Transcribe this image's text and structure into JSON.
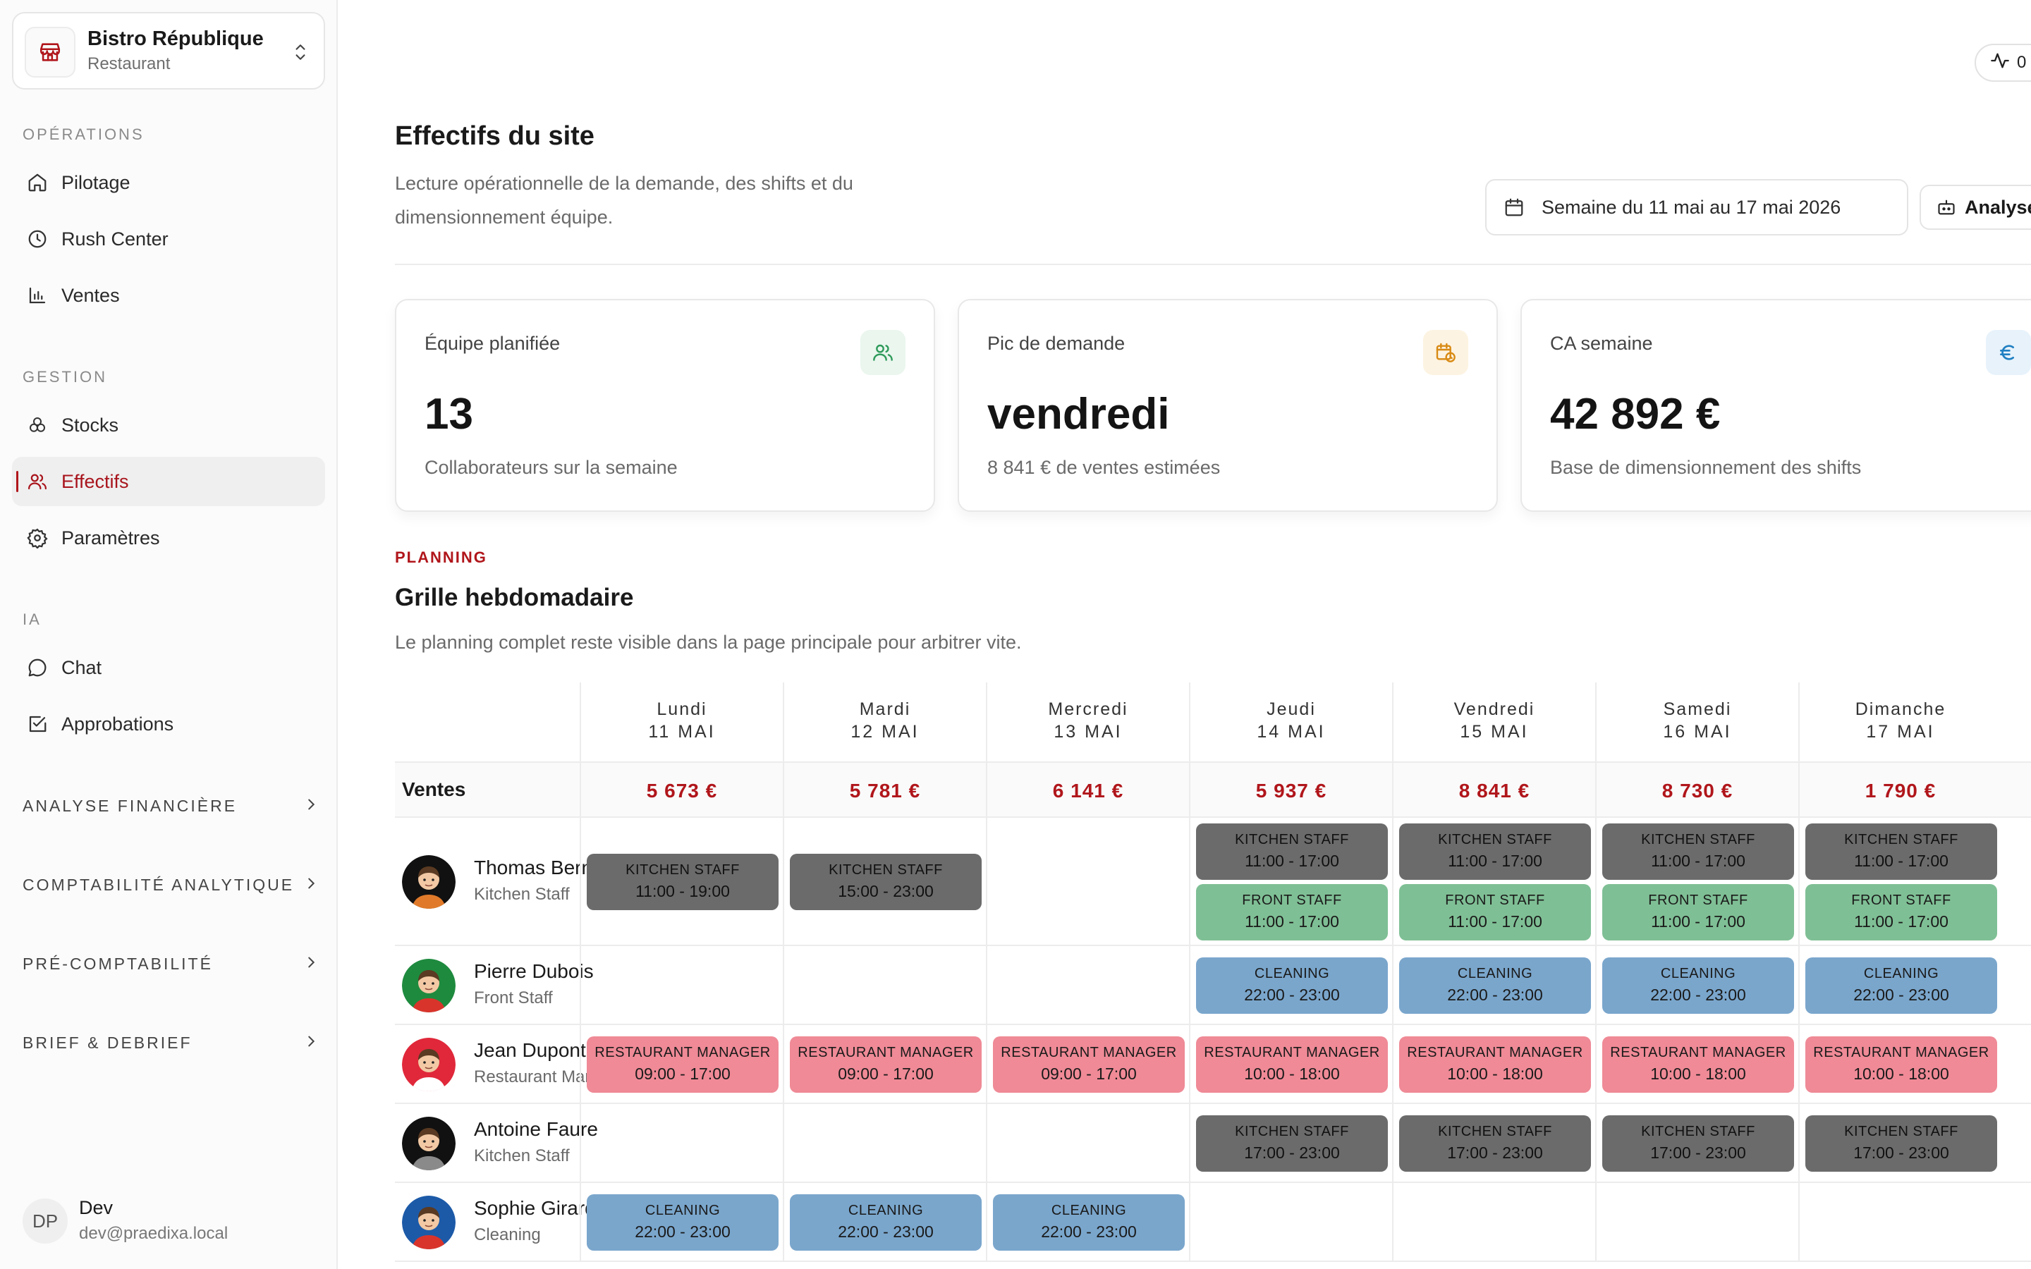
{
  "org": {
    "name": "Bistro République",
    "type": "Restaurant"
  },
  "sidebar": {
    "sections": [
      {
        "label": "OPÉRATIONS",
        "items": [
          {
            "label": "Pilotage",
            "icon": "home-icon"
          },
          {
            "label": "Rush Center",
            "icon": "clock-icon"
          },
          {
            "label": "Ventes",
            "icon": "bar-chart-icon"
          }
        ]
      },
      {
        "label": "GESTION",
        "items": [
          {
            "label": "Stocks",
            "icon": "boxes-icon"
          },
          {
            "label": "Effectifs",
            "icon": "users-icon",
            "active": true
          },
          {
            "label": "Paramètres",
            "icon": "gear-icon"
          }
        ]
      },
      {
        "label": "IA",
        "items": [
          {
            "label": "Chat",
            "icon": "chat-icon"
          },
          {
            "label": "Approbations",
            "icon": "check-square-icon"
          }
        ]
      }
    ],
    "groups": [
      "ANALYSE FINANCIÈRE",
      "COMPTABILITÉ ANALYTIQUE",
      "PRÉ-COMPTABILITÉ",
      "BRIEF & DEBRIEF"
    ],
    "user": {
      "initials": "DP",
      "name": "Dev",
      "email": "dev@praedixa.local"
    }
  },
  "header": {
    "pulse_label": "0",
    "title": "Effectifs du site",
    "subtitle": "Lecture opérationnelle de la demande, des shifts et du dimensionnement équipe.",
    "week_label": "Semaine du 11 mai au 17 mai 2026",
    "analyse_label": "Analyse"
  },
  "cards": [
    {
      "title": "Équipe planifiée",
      "value": "13",
      "desc": "Collaborateurs sur la semaine",
      "icon": "users-icon",
      "accent": "#2e9a5a",
      "bg": "#eaf6ee"
    },
    {
      "title": "Pic de demande",
      "value": "vendredi",
      "desc": "8 841 € de ventes estimées",
      "icon": "calendar-clock-icon",
      "accent": "#d88a14",
      "bg": "#fdf3e2"
    },
    {
      "title": "CA semaine",
      "value": "42 892 €",
      "desc": "Base de dimensionnement des shifts",
      "icon": "euro-icon",
      "accent": "#1f7fc2",
      "bg": "#e7f2fb"
    }
  ],
  "planning": {
    "kicker": "PLANNING",
    "title": "Grille hebdomadaire",
    "subtitle": "Le planning complet reste visible dans la page principale pour arbitrer vite.",
    "days": [
      {
        "name": "Lundi",
        "date": "11 MAI"
      },
      {
        "name": "Mardi",
        "date": "12 MAI"
      },
      {
        "name": "Mercredi",
        "date": "13 MAI"
      },
      {
        "name": "Jeudi",
        "date": "14 MAI"
      },
      {
        "name": "Vendredi",
        "date": "15 MAI"
      },
      {
        "name": "Samedi",
        "date": "16 MAI"
      },
      {
        "name": "Dimanche",
        "date": "17 MAI"
      }
    ],
    "sales_label": "Ventes",
    "sales": [
      "5 673 €",
      "5 781 €",
      "6 141 €",
      "5 937 €",
      "8 841 €",
      "8 730 €",
      "1 790 €"
    ],
    "employees": [
      {
        "name": "Thomas Bernard",
        "role": "Kitchen Staff",
        "avatar_bg": "#111111",
        "shirt": "#e07a2a",
        "shifts": [
          [
            {
              "role": "KITCHEN STAFF",
              "time": "11:00 - 19:00",
              "type": "kitchen"
            }
          ],
          [
            {
              "role": "KITCHEN STAFF",
              "time": "15:00 - 23:00",
              "type": "kitchen"
            }
          ],
          [],
          [
            {
              "role": "KITCHEN STAFF",
              "time": "11:00 - 17:00",
              "type": "kitchen"
            },
            {
              "role": "FRONT STAFF",
              "time": "11:00 - 17:00",
              "type": "front"
            }
          ],
          [
            {
              "role": "KITCHEN STAFF",
              "time": "11:00 - 17:00",
              "type": "kitchen"
            },
            {
              "role": "FRONT STAFF",
              "time": "11:00 - 17:00",
              "type": "front"
            }
          ],
          [
            {
              "role": "KITCHEN STAFF",
              "time": "11:00 - 17:00",
              "type": "kitchen"
            },
            {
              "role": "FRONT STAFF",
              "time": "11:00 - 17:00",
              "type": "front"
            }
          ],
          [
            {
              "role": "KITCHEN STAFF",
              "time": "11:00 - 17:00",
              "type": "kitchen"
            },
            {
              "role": "FRONT STAFF",
              "time": "11:00 - 17:00",
              "type": "front"
            }
          ]
        ]
      },
      {
        "name": "Pierre Dubois",
        "role": "Front Staff",
        "avatar_bg": "#1e8a3e",
        "shirt": "#d9342b",
        "shifts": [
          [],
          [],
          [],
          [
            {
              "role": "CLEANING",
              "time": "22:00 - 23:00",
              "type": "clean"
            }
          ],
          [
            {
              "role": "CLEANING",
              "time": "22:00 - 23:00",
              "type": "clean"
            }
          ],
          [
            {
              "role": "CLEANING",
              "time": "22:00 - 23:00",
              "type": "clean"
            }
          ],
          [
            {
              "role": "CLEANING",
              "time": "22:00 - 23:00",
              "type": "clean"
            }
          ]
        ]
      },
      {
        "name": "Jean Dupont",
        "role": "Restaurant Manager",
        "avatar_bg": "#e0283a",
        "shirt": "#ffffff",
        "shifts": [
          [
            {
              "role": "RESTAURANT MANAGER",
              "time": "09:00 - 17:00",
              "type": "mgr"
            }
          ],
          [
            {
              "role": "RESTAURANT MANAGER",
              "time": "09:00 - 17:00",
              "type": "mgr"
            }
          ],
          [
            {
              "role": "RESTAURANT MANAGER",
              "time": "09:00 - 17:00",
              "type": "mgr"
            }
          ],
          [
            {
              "role": "RESTAURANT MANAGER",
              "time": "10:00 - 18:00",
              "type": "mgr"
            }
          ],
          [
            {
              "role": "RESTAURANT MANAGER",
              "time": "10:00 - 18:00",
              "type": "mgr"
            }
          ],
          [
            {
              "role": "RESTAURANT MANAGER",
              "time": "10:00 - 18:00",
              "type": "mgr"
            }
          ],
          [
            {
              "role": "RESTAURANT MANAGER",
              "time": "10:00 - 18:00",
              "type": "mgr"
            }
          ]
        ]
      },
      {
        "name": "Antoine Faure",
        "role": "Kitchen Staff",
        "avatar_bg": "#111111",
        "shirt": "#8a8a8a",
        "shifts": [
          [],
          [],
          [],
          [
            {
              "role": "KITCHEN STAFF",
              "time": "17:00 - 23:00",
              "type": "kitchen"
            }
          ],
          [
            {
              "role": "KITCHEN STAFF",
              "time": "17:00 - 23:00",
              "type": "kitchen"
            }
          ],
          [
            {
              "role": "KITCHEN STAFF",
              "time": "17:00 - 23:00",
              "type": "kitchen"
            }
          ],
          [
            {
              "role": "KITCHEN STAFF",
              "time": "17:00 - 23:00",
              "type": "kitchen"
            }
          ]
        ]
      },
      {
        "name": "Sophie Girard",
        "role": "Cleaning",
        "avatar_bg": "#1c5aa8",
        "shirt": "#d9342b",
        "shifts": [
          [
            {
              "role": "CLEANING",
              "time": "22:00 - 23:00",
              "type": "clean"
            }
          ],
          [
            {
              "role": "CLEANING",
              "time": "22:00 - 23:00",
              "type": "clean"
            }
          ],
          [
            {
              "role": "CLEANING",
              "time": "22:00 - 23:00",
              "type": "clean"
            }
          ],
          [],
          [],
          [],
          []
        ]
      }
    ]
  }
}
